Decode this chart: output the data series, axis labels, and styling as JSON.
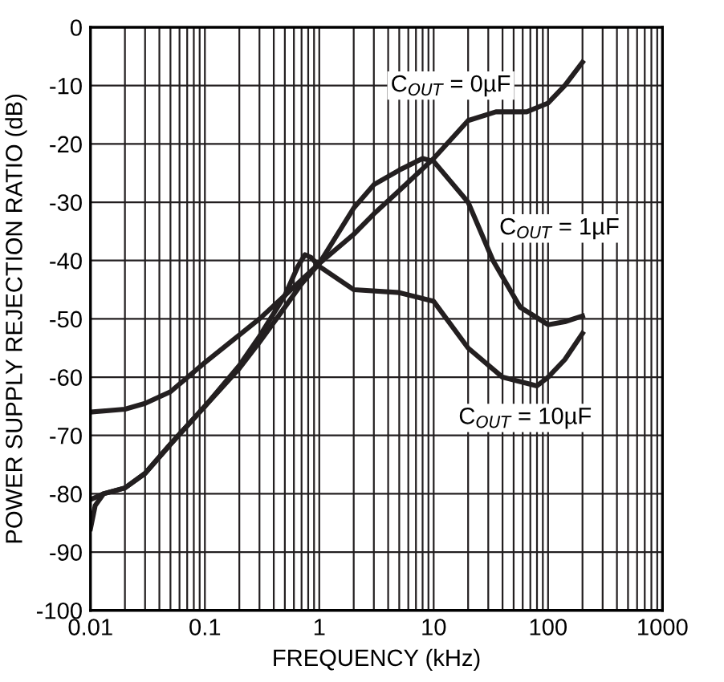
{
  "chart_data": {
    "type": "line",
    "xlabel": "FREQUENCY (kHz)",
    "ylabel": "POWER SUPPLY REJECTION RATIO (dB)",
    "log": "x",
    "grid": true,
    "legend": false,
    "xlim": [
      0.01,
      1000
    ],
    "xticks": [
      0.01,
      0.1,
      1,
      10,
      100,
      1000
    ],
    "ylim": [
      -100,
      0
    ],
    "yticks": [
      -100,
      -90,
      -80,
      -70,
      -60,
      -50,
      -40,
      -30,
      -20,
      -10,
      0
    ],
    "annotations": [
      "C$_{OUT}$ = 0µF",
      "C$_{OUT}$ = 1µF",
      "C$_{OUT}$ = 10µF"
    ],
    "series": [
      {
        "color": "#231f20",
        "x": [
          0.01,
          0.013,
          0.02,
          0.03,
          0.05,
          0.1,
          0.2,
          0.3,
          0.5,
          0.7,
          1,
          2,
          3,
          5,
          10,
          20,
          35,
          65,
          100,
          140,
          200
        ],
        "values": [
          -81,
          -80,
          -79,
          -76.5,
          -71.5,
          -65,
          -58.5,
          -54,
          -48,
          -44,
          -40.5,
          -35.5,
          -32,
          -28,
          -22.5,
          -16,
          -14.5,
          -14.5,
          -13,
          -10,
          -6
        ]
      },
      {
        "color": "#231f20",
        "x": [
          0.01,
          0.02,
          0.03,
          0.05,
          0.1,
          0.3,
          0.5,
          1,
          2,
          3,
          5,
          8,
          10,
          20,
          33,
          57,
          100,
          140,
          200
        ],
        "values": [
          -66,
          -65.5,
          -64.5,
          -62.5,
          -57.5,
          -50,
          -46,
          -40.5,
          -31,
          -27,
          -24.5,
          -22.5,
          -23,
          -30,
          -40,
          -48,
          -51,
          -50.5,
          -49.5
        ]
      },
      {
        "color": "#231f20",
        "x": [
          0.01,
          0.011,
          0.013,
          0.02,
          0.03,
          0.05,
          0.1,
          0.2,
          0.3,
          0.5,
          0.65,
          0.75,
          0.85,
          1,
          2,
          5,
          10,
          20,
          40,
          80,
          100,
          140,
          200
        ],
        "values": [
          -86,
          -82,
          -80,
          -79,
          -76.5,
          -71.5,
          -65,
          -58,
          -53,
          -46,
          -41,
          -39,
          -39.5,
          -41,
          -45,
          -45.5,
          -47,
          -55,
          -60,
          -61.5,
          -60,
          -57,
          -52.5
        ]
      }
    ]
  }
}
